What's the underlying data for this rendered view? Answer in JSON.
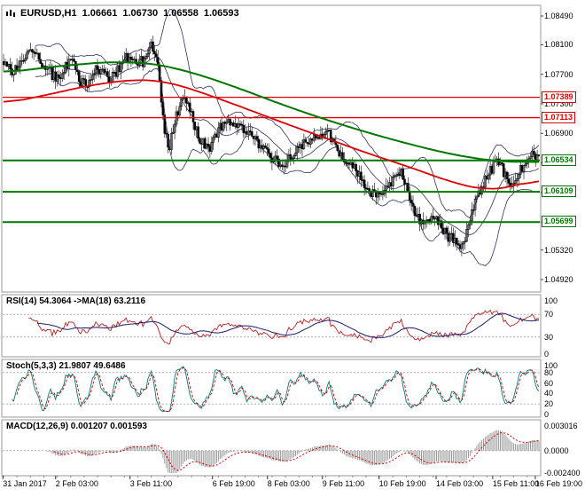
{
  "header": {
    "symbol": "EURUSD,H1",
    "open": "1.06661",
    "high": "1.06730",
    "low": "1.06558",
    "close": "1.06593"
  },
  "panes": {
    "rsi_label": "RSI(14) 54.3064 ->MA(18) 63.2116",
    "stoch_label": "Stoch(5,3,3) 21.9807 49.6486",
    "macd_label": "MACD(12,26,9) 0.001207 0.001593"
  },
  "chart_data": {
    "type": "candlestick",
    "symbol": "EURUSD",
    "timeframe": "H1",
    "bars": 320,
    "last_quote": {
      "open": 1.06661,
      "high": 1.0673,
      "low": 1.06558,
      "close": 1.06593
    },
    "indicators": {
      "rsi": {
        "period": 14,
        "value": 54.3064,
        "ma_period": 18,
        "ma_value": 63.2116
      },
      "stoch": {
        "params": [
          5,
          3,
          3
        ],
        "k": 21.9807,
        "d": 49.6486
      },
      "macd": {
        "params": [
          12,
          26,
          9
        ],
        "value": 0.001207,
        "signal": 0.001593
      }
    },
    "price_axis": {
      "ticks": [
        "1.08490",
        "1.08100",
        "1.07700",
        "1.07300",
        "1.06900",
        "1.06500",
        "1.06100",
        "1.05700",
        "1.05320",
        "1.04920"
      ]
    },
    "time_axis": [
      {
        "text": "31 Jan 2017",
        "t": 0.002
      },
      {
        "text": "2 Feb 03:00",
        "t": 0.1
      },
      {
        "text": "3 Feb 11:00",
        "t": 0.238
      },
      {
        "text": "6 Feb 19:00",
        "t": 0.391
      },
      {
        "text": "8 Feb 03:00",
        "t": 0.493
      },
      {
        "text": "9 Feb 11:00",
        "t": 0.595
      },
      {
        "text": "10 Feb 19:00",
        "t": 0.7
      },
      {
        "text": "14 Feb 03:00",
        "t": 0.806
      },
      {
        "text": "15 Feb 11:00",
        "t": 0.911
      },
      {
        "text": "16 Feb 19:00",
        "t": 0.99
      }
    ],
    "levels": [
      {
        "price": 1.07389,
        "label": "1.07389",
        "color": "#dd0000",
        "width": 1.3
      },
      {
        "price": 1.07113,
        "label": "1.07113",
        "color": "#dd0000",
        "width": 1.3
      },
      {
        "price": 1.06534,
        "label": "1.06534",
        "color": "#007700",
        "width": 2
      },
      {
        "price": 1.06109,
        "label": "1.06109",
        "color": "#007700",
        "width": 2
      },
      {
        "price": 1.05699,
        "label": "1.05699",
        "color": "#007700",
        "width": 2
      }
    ],
    "price_path": [
      [
        0,
        1.079
      ],
      [
        0.02,
        1.0772
      ],
      [
        0.045,
        1.0802
      ],
      [
        0.07,
        1.0788
      ],
      [
        0.1,
        1.0762
      ],
      [
        0.125,
        1.079
      ],
      [
        0.15,
        1.0752
      ],
      [
        0.175,
        1.078
      ],
      [
        0.2,
        1.0762
      ],
      [
        0.23,
        1.0796
      ],
      [
        0.265,
        1.0785
      ],
      [
        0.28,
        1.0819
      ],
      [
        0.295,
        1.0745
      ],
      [
        0.305,
        1.0655
      ],
      [
        0.325,
        1.0722
      ],
      [
        0.34,
        1.0742
      ],
      [
        0.36,
        1.069
      ],
      [
        0.385,
        1.0668
      ],
      [
        0.41,
        1.0705
      ],
      [
        0.44,
        1.0698
      ],
      [
        0.465,
        1.0688
      ],
      [
        0.49,
        1.0662
      ],
      [
        0.52,
        1.0645
      ],
      [
        0.545,
        1.0668
      ],
      [
        0.575,
        1.0682
      ],
      [
        0.61,
        1.069
      ],
      [
        0.635,
        1.065
      ],
      [
        0.655,
        1.0648
      ],
      [
        0.675,
        1.0618
      ],
      [
        0.695,
        1.0604
      ],
      [
        0.72,
        1.0622
      ],
      [
        0.745,
        1.064
      ],
      [
        0.77,
        1.0575
      ],
      [
        0.79,
        1.0562
      ],
      [
        0.81,
        1.058
      ],
      [
        0.825,
        1.0552
      ],
      [
        0.843,
        1.0548
      ],
      [
        0.855,
        1.0524
      ],
      [
        0.87,
        1.0572
      ],
      [
        0.89,
        1.0612
      ],
      [
        0.905,
        1.0635
      ],
      [
        0.925,
        1.0658
      ],
      [
        0.945,
        1.0615
      ],
      [
        0.965,
        1.0638
      ],
      [
        0.98,
        1.0662
      ],
      [
        1,
        1.0658
      ]
    ],
    "ma_red": [
      [
        0,
        1.073
      ],
      [
        0.08,
        1.0742
      ],
      [
        0.16,
        1.0755
      ],
      [
        0.24,
        1.0763
      ],
      [
        0.3,
        1.0761
      ],
      [
        0.36,
        1.0748
      ],
      [
        0.44,
        1.0727
      ],
      [
        0.52,
        1.0705
      ],
      [
        0.6,
        1.0684
      ],
      [
        0.68,
        1.0663
      ],
      [
        0.76,
        1.0644
      ],
      [
        0.84,
        1.0623
      ],
      [
        0.9,
        1.0613
      ],
      [
        0.95,
        1.0617
      ],
      [
        1,
        1.063
      ]
    ],
    "ma_green": [
      [
        0,
        1.0772
      ],
      [
        0.1,
        1.0781
      ],
      [
        0.2,
        1.0787
      ],
      [
        0.28,
        1.0785
      ],
      [
        0.36,
        1.0771
      ],
      [
        0.44,
        1.0751
      ],
      [
        0.52,
        1.0729
      ],
      [
        0.6,
        1.0709
      ],
      [
        0.68,
        1.0691
      ],
      [
        0.76,
        1.0675
      ],
      [
        0.84,
        1.0661
      ],
      [
        0.92,
        1.0652
      ],
      [
        1,
        1.0651
      ]
    ],
    "rsi_axis": [
      "100",
      "70",
      "30",
      "0"
    ],
    "rsi_levels": [
      70,
      30
    ],
    "stoch_axis": [
      "100",
      "80",
      "60",
      "40",
      "20",
      "0"
    ],
    "stoch_levels": [
      80,
      20
    ],
    "macd_axis": [
      {
        "text": "0.003016",
        "value": 0.003016
      },
      {
        "text": "0.0000",
        "value": 0
      },
      {
        "text": "-0.002400",
        "value": -0.0024
      }
    ],
    "colors": {
      "candle": "#000000",
      "bollinger": "#30305e",
      "ma_red": "#dd0000",
      "ma_green": "#007700",
      "rsi": "#b22222",
      "rsi_ma": "#1a1a6e",
      "stoch_k": "#007a7a",
      "stoch_d": "#cc0000",
      "macd_hist": "#9a9a9a",
      "macd_signal": "#cc0000",
      "guide": "#b0b0b0",
      "pane_border": "#9a9a9a"
    }
  }
}
